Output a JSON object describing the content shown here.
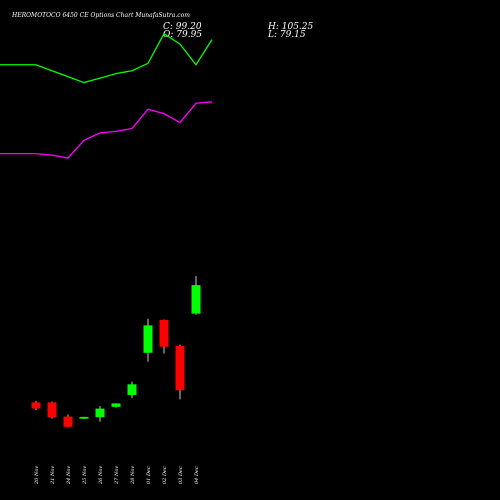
{
  "chart_data": {
    "type": "candlestick",
    "title": "HEROMOTOCO 6450 CE Options Chart MunafaSutra.com",
    "ohlc": {
      "C": "C: 99.20",
      "H": "H: 105.25",
      "O": "O: 79.95",
      "L": "L: 79.15"
    },
    "categories": [
      "20 Nov",
      "21 Nov",
      "24 Nov",
      "25 Nov",
      "26 Nov",
      "27 Nov",
      "28 Nov",
      "01 Dec",
      "02 Dec",
      "03 Dec",
      "04 Dec"
    ],
    "candles": [
      {
        "open": 20.0,
        "high": 21.0,
        "low": 14.8,
        "close": 15.9
      },
      {
        "open": 20.0,
        "high": 20.5,
        "low": 9.0,
        "close": 9.8
      },
      {
        "open": 10.4,
        "high": 11.8,
        "low": 3.5,
        "close": 3.5
      },
      {
        "open": 9.0,
        "high": 10.3,
        "low": 8.8,
        "close": 10.2
      },
      {
        "open": 10.0,
        "high": 17.5,
        "low": 7.0,
        "close": 15.8
      },
      {
        "open": 17.0,
        "high": 19.5,
        "low": 16.5,
        "close": 19.3
      },
      {
        "open": 25.0,
        "high": 34.0,
        "low": 23.0,
        "close": 32.2
      },
      {
        "open": 53.5,
        "high": 76.5,
        "low": 47.5,
        "close": 72.0
      },
      {
        "open": 75.7,
        "high": 76.0,
        "low": 53.0,
        "close": 57.6
      },
      {
        "open": 58.1,
        "high": 59.0,
        "low": 22.0,
        "close": 28.2
      },
      {
        "open": 79.95,
        "high": 105.25,
        "low": 79.15,
        "close": 99.2
      }
    ],
    "bands": [
      {
        "name": "",
        "color": "#00ff00",
        "points": [
          [
            -1,
            248
          ],
          [
            0,
            248
          ],
          [
            1,
            244
          ],
          [
            2,
            240
          ],
          [
            3,
            236
          ],
          [
            4,
            239
          ],
          [
            5,
            242
          ],
          [
            6,
            244
          ],
          [
            7,
            249
          ],
          [
            8,
            269
          ],
          [
            9,
            262
          ],
          [
            10,
            248
          ],
          [
            11,
            265
          ]
        ]
      },
      {
        "name": "",
        "color": "#ff00ff",
        "points": [
          [
            -1,
            188
          ],
          [
            0,
            188
          ],
          [
            1,
            187
          ],
          [
            2,
            185
          ],
          [
            3,
            197
          ],
          [
            4,
            202
          ],
          [
            5,
            203
          ],
          [
            6,
            205
          ],
          [
            7,
            218
          ],
          [
            8,
            215
          ],
          [
            9,
            209
          ],
          [
            10,
            222
          ],
          [
            11,
            223
          ]
        ]
      }
    ],
    "colors": {
      "up": "#00ff00",
      "down": "#ff0000",
      "wick": "#ffffff",
      "background": "#000000"
    },
    "ylim": [
      0,
      285
    ],
    "grid": false,
    "legend": "none"
  }
}
